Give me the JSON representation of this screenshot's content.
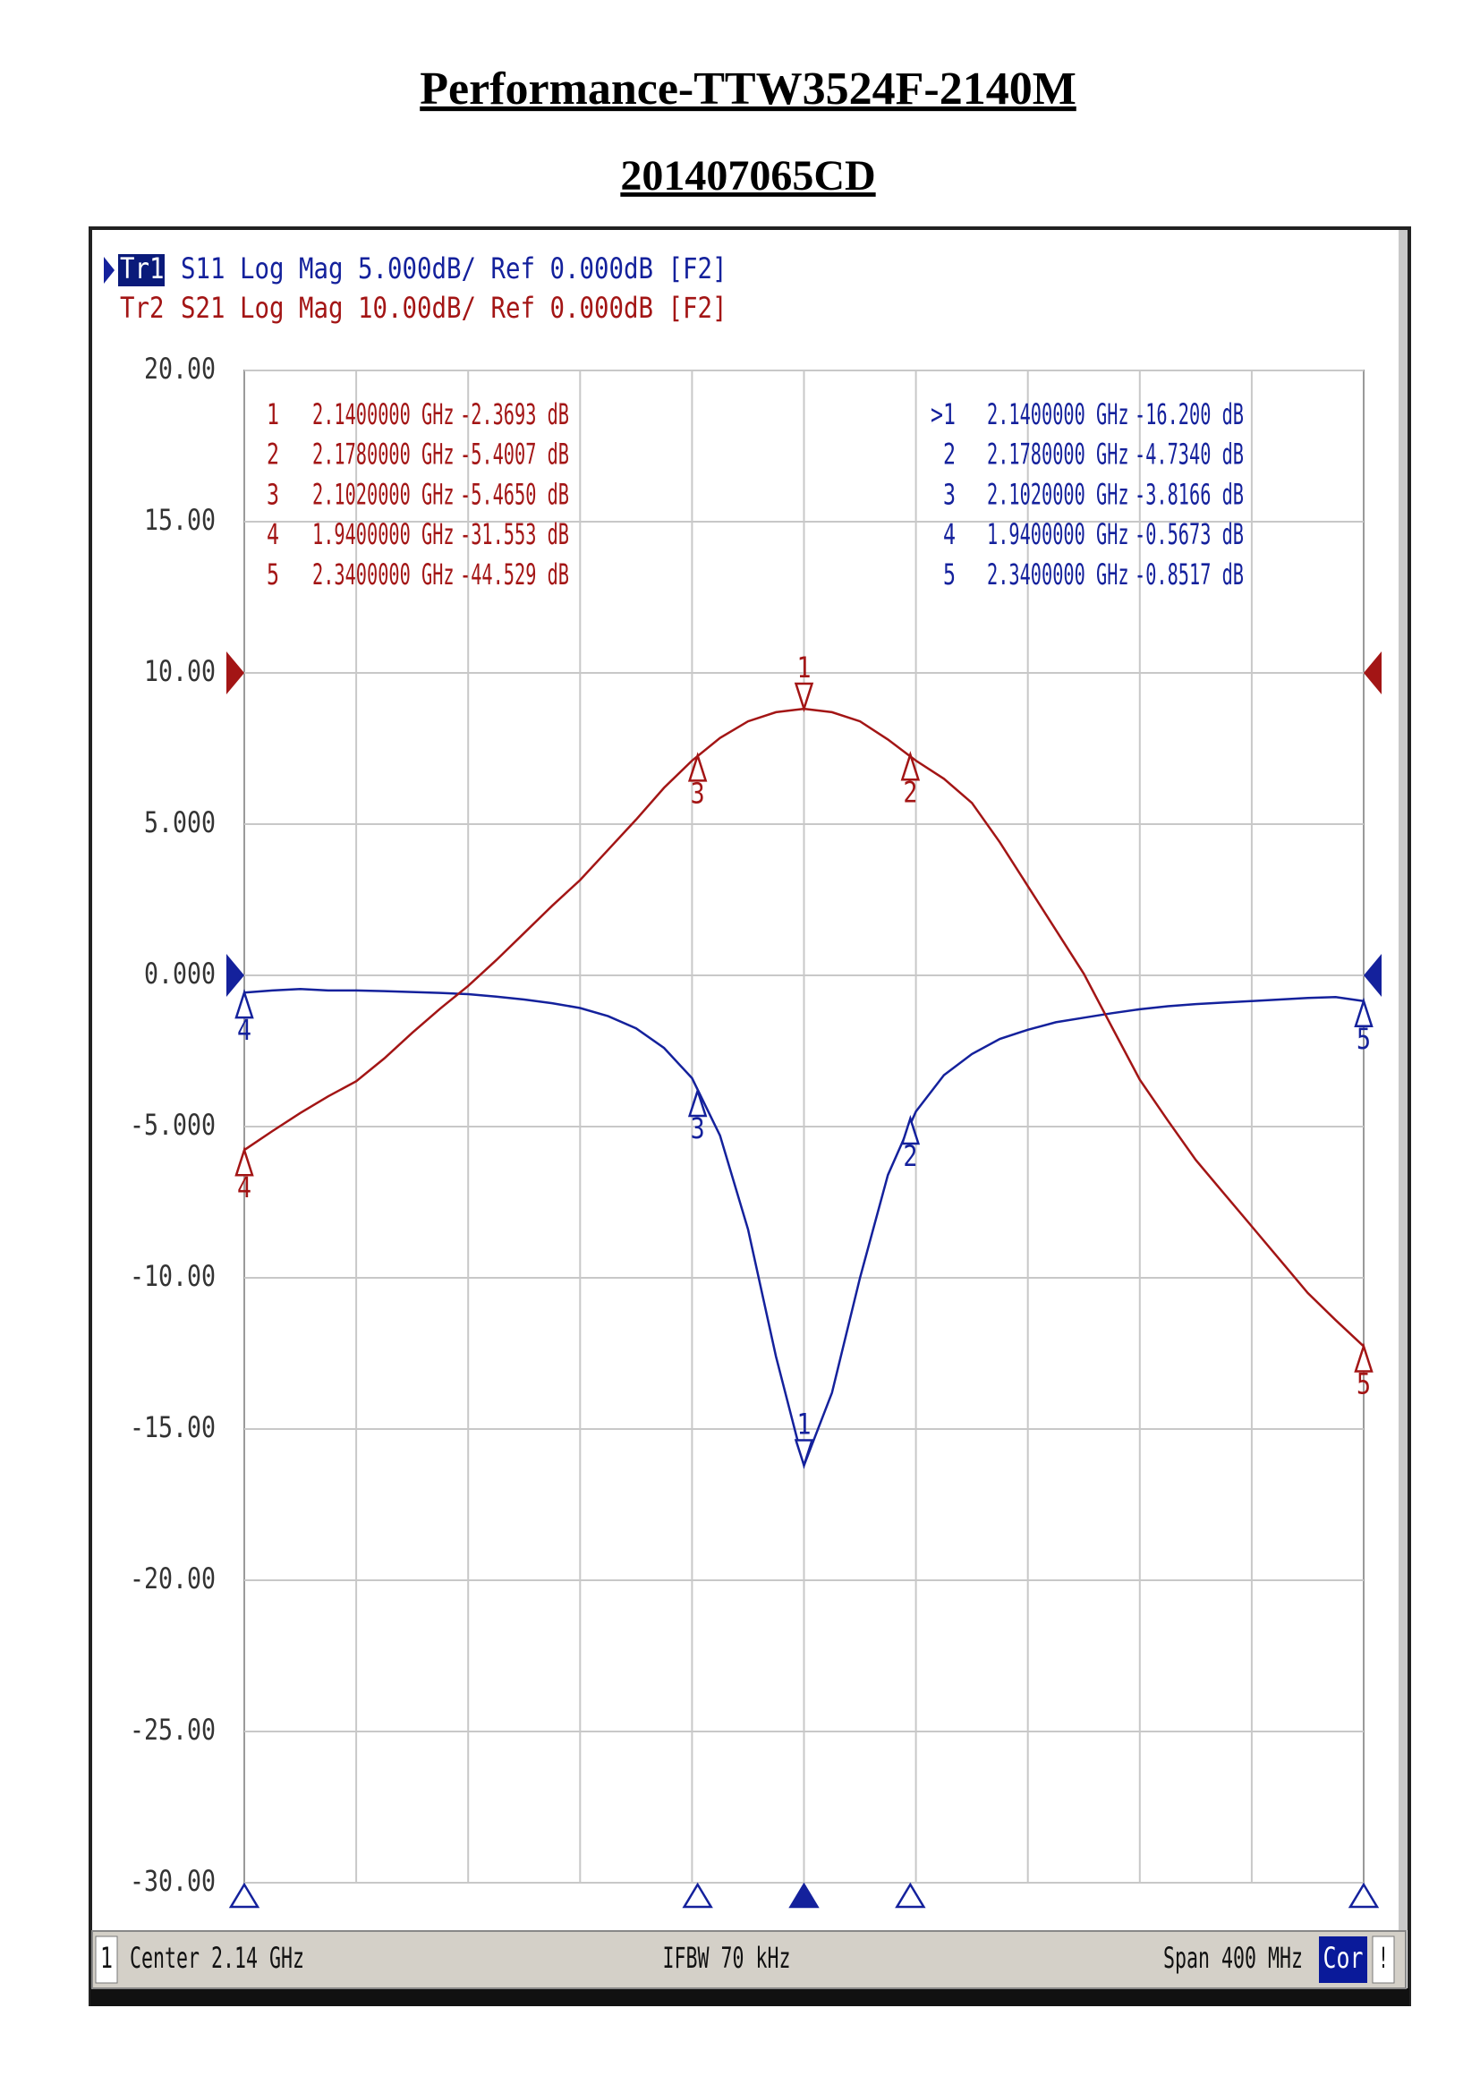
{
  "chart_data": {
    "type": "line",
    "title": "Performance-TTW3524F-2140M",
    "subtitle": "201407065CD",
    "xlim": [
      1.94,
      2.34
    ],
    "ylim": [
      -30,
      20
    ],
    "y2lim": [
      -80,
      20
    ],
    "yticks": [
      {
        "value": 20,
        "label": "20.00"
      },
      {
        "value": 15,
        "label": "15.00"
      },
      {
        "value": 10,
        "label": "10.00"
      },
      {
        "value": 5,
        "label": "5.000"
      },
      {
        "value": 0,
        "label": "0.000"
      },
      {
        "value": -5,
        "label": "-5.000"
      },
      {
        "value": -10,
        "label": "-10.00"
      },
      {
        "value": -15,
        "label": "-15.00"
      },
      {
        "value": -20,
        "label": "-20.00"
      },
      {
        "value": -25,
        "label": "-25.00"
      },
      {
        "value": -30,
        "label": "-30.00"
      }
    ],
    "grid": true,
    "x": [
      1.94,
      1.95,
      1.96,
      1.97,
      1.98,
      1.99,
      2.0,
      2.01,
      2.02,
      2.03,
      2.04,
      2.05,
      2.06,
      2.07,
      2.08,
      2.09,
      2.1,
      2.11,
      2.12,
      2.13,
      2.14,
      2.15,
      2.16,
      2.17,
      2.18,
      2.19,
      2.2,
      2.21,
      2.22,
      2.23,
      2.24,
      2.25,
      2.26,
      2.27,
      2.28,
      2.29,
      2.3,
      2.31,
      2.32,
      2.33,
      2.34
    ],
    "series": [
      {
        "name": "Tr1",
        "label": "S11 Log Mag 5.000dB/ Ref 0.000dB [F2]",
        "color": "#14219c",
        "axis": "y",
        "ref": 0,
        "active": true,
        "values": [
          -0.57,
          -0.5,
          -0.45,
          -0.5,
          -0.5,
          -0.52,
          -0.55,
          -0.58,
          -0.62,
          -0.7,
          -0.8,
          -0.92,
          -1.08,
          -1.35,
          -1.75,
          -2.4,
          -3.4,
          -5.3,
          -8.4,
          -12.6,
          -16.2,
          -13.8,
          -10.0,
          -6.6,
          -4.5,
          -3.3,
          -2.6,
          -2.1,
          -1.8,
          -1.55,
          -1.4,
          -1.25,
          -1.12,
          -1.02,
          -0.95,
          -0.9,
          -0.85,
          -0.8,
          -0.75,
          -0.72,
          -0.85
        ],
        "markers": [
          {
            "id": "1",
            "table_id": ">1",
            "x": 2.14,
            "value": -16.2,
            "x_label": "2.1400000 GHz",
            "value_label": "-16.200 dB"
          },
          {
            "id": "2",
            "x": 2.178,
            "value": -4.734,
            "x_label": "2.1780000 GHz",
            "value_label": "-4.7340 dB"
          },
          {
            "id": "3",
            "x": 2.102,
            "value": -3.8166,
            "x_label": "2.1020000 GHz",
            "value_label": "-3.8166 dB"
          },
          {
            "id": "4",
            "x": 1.94,
            "value": -0.5673,
            "x_label": "1.9400000 GHz",
            "value_label": "-0.5673 dB"
          },
          {
            "id": "5",
            "x": 2.34,
            "value": -0.8517,
            "x_label": "2.3400000 GHz",
            "value_label": "-0.8517 dB"
          }
        ]
      },
      {
        "name": "Tr2",
        "label": "S21 Log Mag 10.00dB/ Ref 0.000dB [F2]",
        "color": "#a31515",
        "axis": "y2",
        "ref": 0,
        "active": false,
        "values": [
          -31.55,
          -30.3,
          -29.1,
          -28.0,
          -27.0,
          -25.5,
          -23.8,
          -22.2,
          -20.7,
          -19.0,
          -17.2,
          -15.4,
          -13.7,
          -11.7,
          -9.7,
          -7.6,
          -5.8,
          -4.3,
          -3.2,
          -2.6,
          -2.37,
          -2.6,
          -3.2,
          -4.4,
          -5.8,
          -7.0,
          -8.6,
          -11.2,
          -14.1,
          -17.0,
          -19.9,
          -23.4,
          -26.9,
          -29.6,
          -32.2,
          -34.4,
          -36.6,
          -38.8,
          -41.0,
          -42.8,
          -44.53
        ],
        "markers": [
          {
            "id": "1",
            "x": 2.14,
            "value": -2.3693,
            "x_label": "2.1400000 GHz",
            "value_label": "-2.3693 dB"
          },
          {
            "id": "2",
            "x": 2.178,
            "value": -5.4007,
            "x_label": "2.1780000 GHz",
            "value_label": "-5.4007 dB"
          },
          {
            "id": "3",
            "x": 2.102,
            "value": -5.465,
            "x_label": "2.1020000 GHz",
            "value_label": "-5.4650 dB"
          },
          {
            "id": "4",
            "x": 1.94,
            "value": -31.553,
            "x_label": "1.9400000 GHz",
            "value_label": "-31.553 dB"
          },
          {
            "id": "5",
            "x": 2.34,
            "value": -44.529,
            "x_label": "2.3400000 GHz",
            "value_label": "-44.529 dB"
          }
        ]
      }
    ],
    "status": {
      "channel": "1",
      "center": "Center 2.14 GHz",
      "ifbw": "IFBW 70 kHz",
      "span": "Span 400 MHz",
      "correction": "Cor",
      "warning": "!"
    }
  }
}
